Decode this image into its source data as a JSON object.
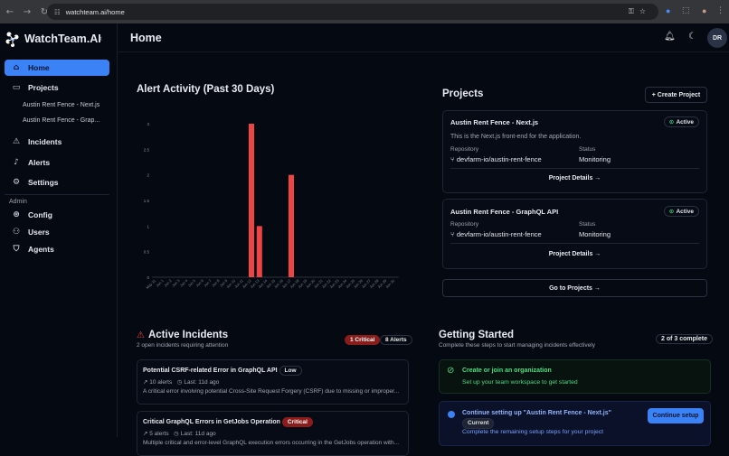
{
  "browser": {
    "url": "watchteam.ai/home"
  },
  "sidebar": {
    "brand": "WatchTeam.AI",
    "items": [
      {
        "label": "Home",
        "icon": "home-icon"
      },
      {
        "label": "Projects",
        "icon": "folder-icon"
      },
      {
        "label": "Incidents",
        "icon": "warning-icon"
      },
      {
        "label": "Alerts",
        "icon": "bell-icon"
      },
      {
        "label": "Settings",
        "icon": "gear-icon"
      }
    ],
    "projects": [
      "Austin Rent Fence - Next.js",
      "Austin Rent Fence - Grap..."
    ],
    "admin_label": "Admin",
    "admin_items": [
      {
        "label": "Config",
        "icon": "config-icon"
      },
      {
        "label": "Users",
        "icon": "users-icon"
      },
      {
        "label": "Agents",
        "icon": "shield-icon"
      }
    ]
  },
  "header": {
    "title": "Home",
    "avatar": "DR"
  },
  "chart_data": {
    "type": "bar",
    "title": "Alert Activity (Past 30 Days)",
    "categories": [
      "May 31",
      "Jun 1",
      "Jun 2",
      "Jun 3",
      "Jun 4",
      "Jun 5",
      "Jun 6",
      "Jun 7",
      "Jun 8",
      "Jun 9",
      "Jun 10",
      "Jun 11",
      "Jun 12",
      "Jun 13",
      "Jun 14",
      "Jun 15",
      "Jun 16",
      "Jun 17",
      "Jun 18",
      "Jun 19",
      "Jun 20",
      "Jun 21",
      "Jun 22",
      "Jun 23",
      "Jun 24",
      "Jun 25",
      "Jun 26",
      "Jun 27",
      "Jun 28",
      "Jun 29",
      "Jun 30"
    ],
    "values": [
      0,
      0,
      0,
      0,
      0,
      0,
      0,
      0,
      0,
      0,
      0,
      0,
      3,
      1,
      0,
      0,
      0,
      2,
      0,
      0,
      0,
      0,
      0,
      0,
      0,
      0,
      0,
      0,
      0,
      0,
      0
    ],
    "yticks": [
      "0",
      "0.5",
      "1",
      "1.5",
      "2",
      "2.5",
      "3"
    ],
    "ylim": [
      0,
      3
    ],
    "grid": false,
    "color": "#ef4444"
  },
  "projects": {
    "title": "Projects",
    "create_label": "+ Create Project",
    "cards": [
      {
        "name": "Austin Rent Fence - Next.js",
        "status_badge": "Active",
        "description": "This is the Next.js front-end for the application.",
        "repo_label": "Repository",
        "repo": "devfarm-io/austin-rent-fence",
        "status_label": "Status",
        "status": "Monitoring",
        "details": "Project Details →"
      },
      {
        "name": "Austin Rent Fence - GraphQL API",
        "status_badge": "Active",
        "repo_label": "Repository",
        "repo": "devfarm-io/austin-rent-fence",
        "status_label": "Status",
        "status": "Monitoring",
        "details": "Project Details →"
      }
    ],
    "goto": "Go to Projects →"
  },
  "incidents": {
    "title": "Active Incidents",
    "subtitle": "2 open incidents requiring attention",
    "critical_badge": "1 Critical",
    "alerts_badge": "8 Alerts",
    "items": [
      {
        "title": "Potential CSRF-related Error in GraphQL API",
        "severity": "Low",
        "alerts": "10 alerts",
        "last": "Last: 11d ago",
        "desc": "A critical error involving potential Cross-Site Request Forgery (CSRF) due to missing or improper..."
      },
      {
        "title": "Critical GraphQL Errors in GetJobs Operation",
        "severity": "Critical",
        "alerts": "5 alerts",
        "last": "Last: 11d ago",
        "desc": "Multiple critical and error-level GraphQL execution errors occurring in the GetJobs operation with..."
      }
    ]
  },
  "getting_started": {
    "title": "Getting Started",
    "subtitle": "Complete these steps to start managing incidents effectively",
    "progress": "2 of 3 complete",
    "steps": [
      {
        "title": "Create or join an organization",
        "desc": "Set up your team workspace to get started",
        "done": true
      },
      {
        "title": "Continue setting up \"Austin Rent Fence - Next.js\"",
        "badge": "Current",
        "desc": "Complete the remaining setup steps for your project",
        "button": "Continue setup",
        "done": false
      }
    ]
  },
  "colors": {
    "accent": "#3b82f6",
    "critical": "#8a1c1c",
    "bar": "#ef4444",
    "success": "#4ade80"
  }
}
